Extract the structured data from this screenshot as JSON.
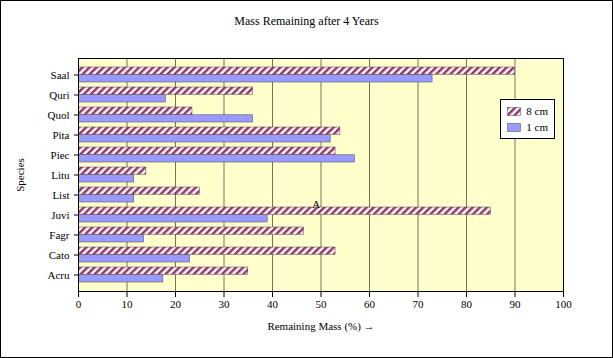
{
  "chart_data": {
    "type": "bar",
    "orientation": "horizontal",
    "title": "Mass Remaining after 4 Years",
    "x_label": "Remaining Mass (%)",
    "y_label": "Species",
    "categories": [
      "Saal",
      "Quri",
      "Quol",
      "Pita",
      "Piec",
      "Litu",
      "List",
      "Juvi",
      "Fagr",
      "Cato",
      "Acru"
    ],
    "series": [
      {
        "name": "8 cm",
        "color": "#993366",
        "values": [
          90,
          36,
          23.5,
          54,
          53,
          14,
          25,
          85,
          46.5,
          53,
          35
        ]
      },
      {
        "name": "1 cm",
        "color": "#9999ff",
        "values": [
          73,
          18,
          36,
          52,
          57,
          11.5,
          11.5,
          39,
          13.5,
          23,
          17.5
        ]
      }
    ],
    "xlim": [
      0,
      100
    ],
    "xticks": [
      0,
      10,
      20,
      30,
      40,
      50,
      60,
      70,
      80,
      90,
      100
    ],
    "grid": true,
    "legend": "right",
    "annotations": [
      {
        "text": "A",
        "x": 49,
        "y": "List"
      }
    ]
  }
}
